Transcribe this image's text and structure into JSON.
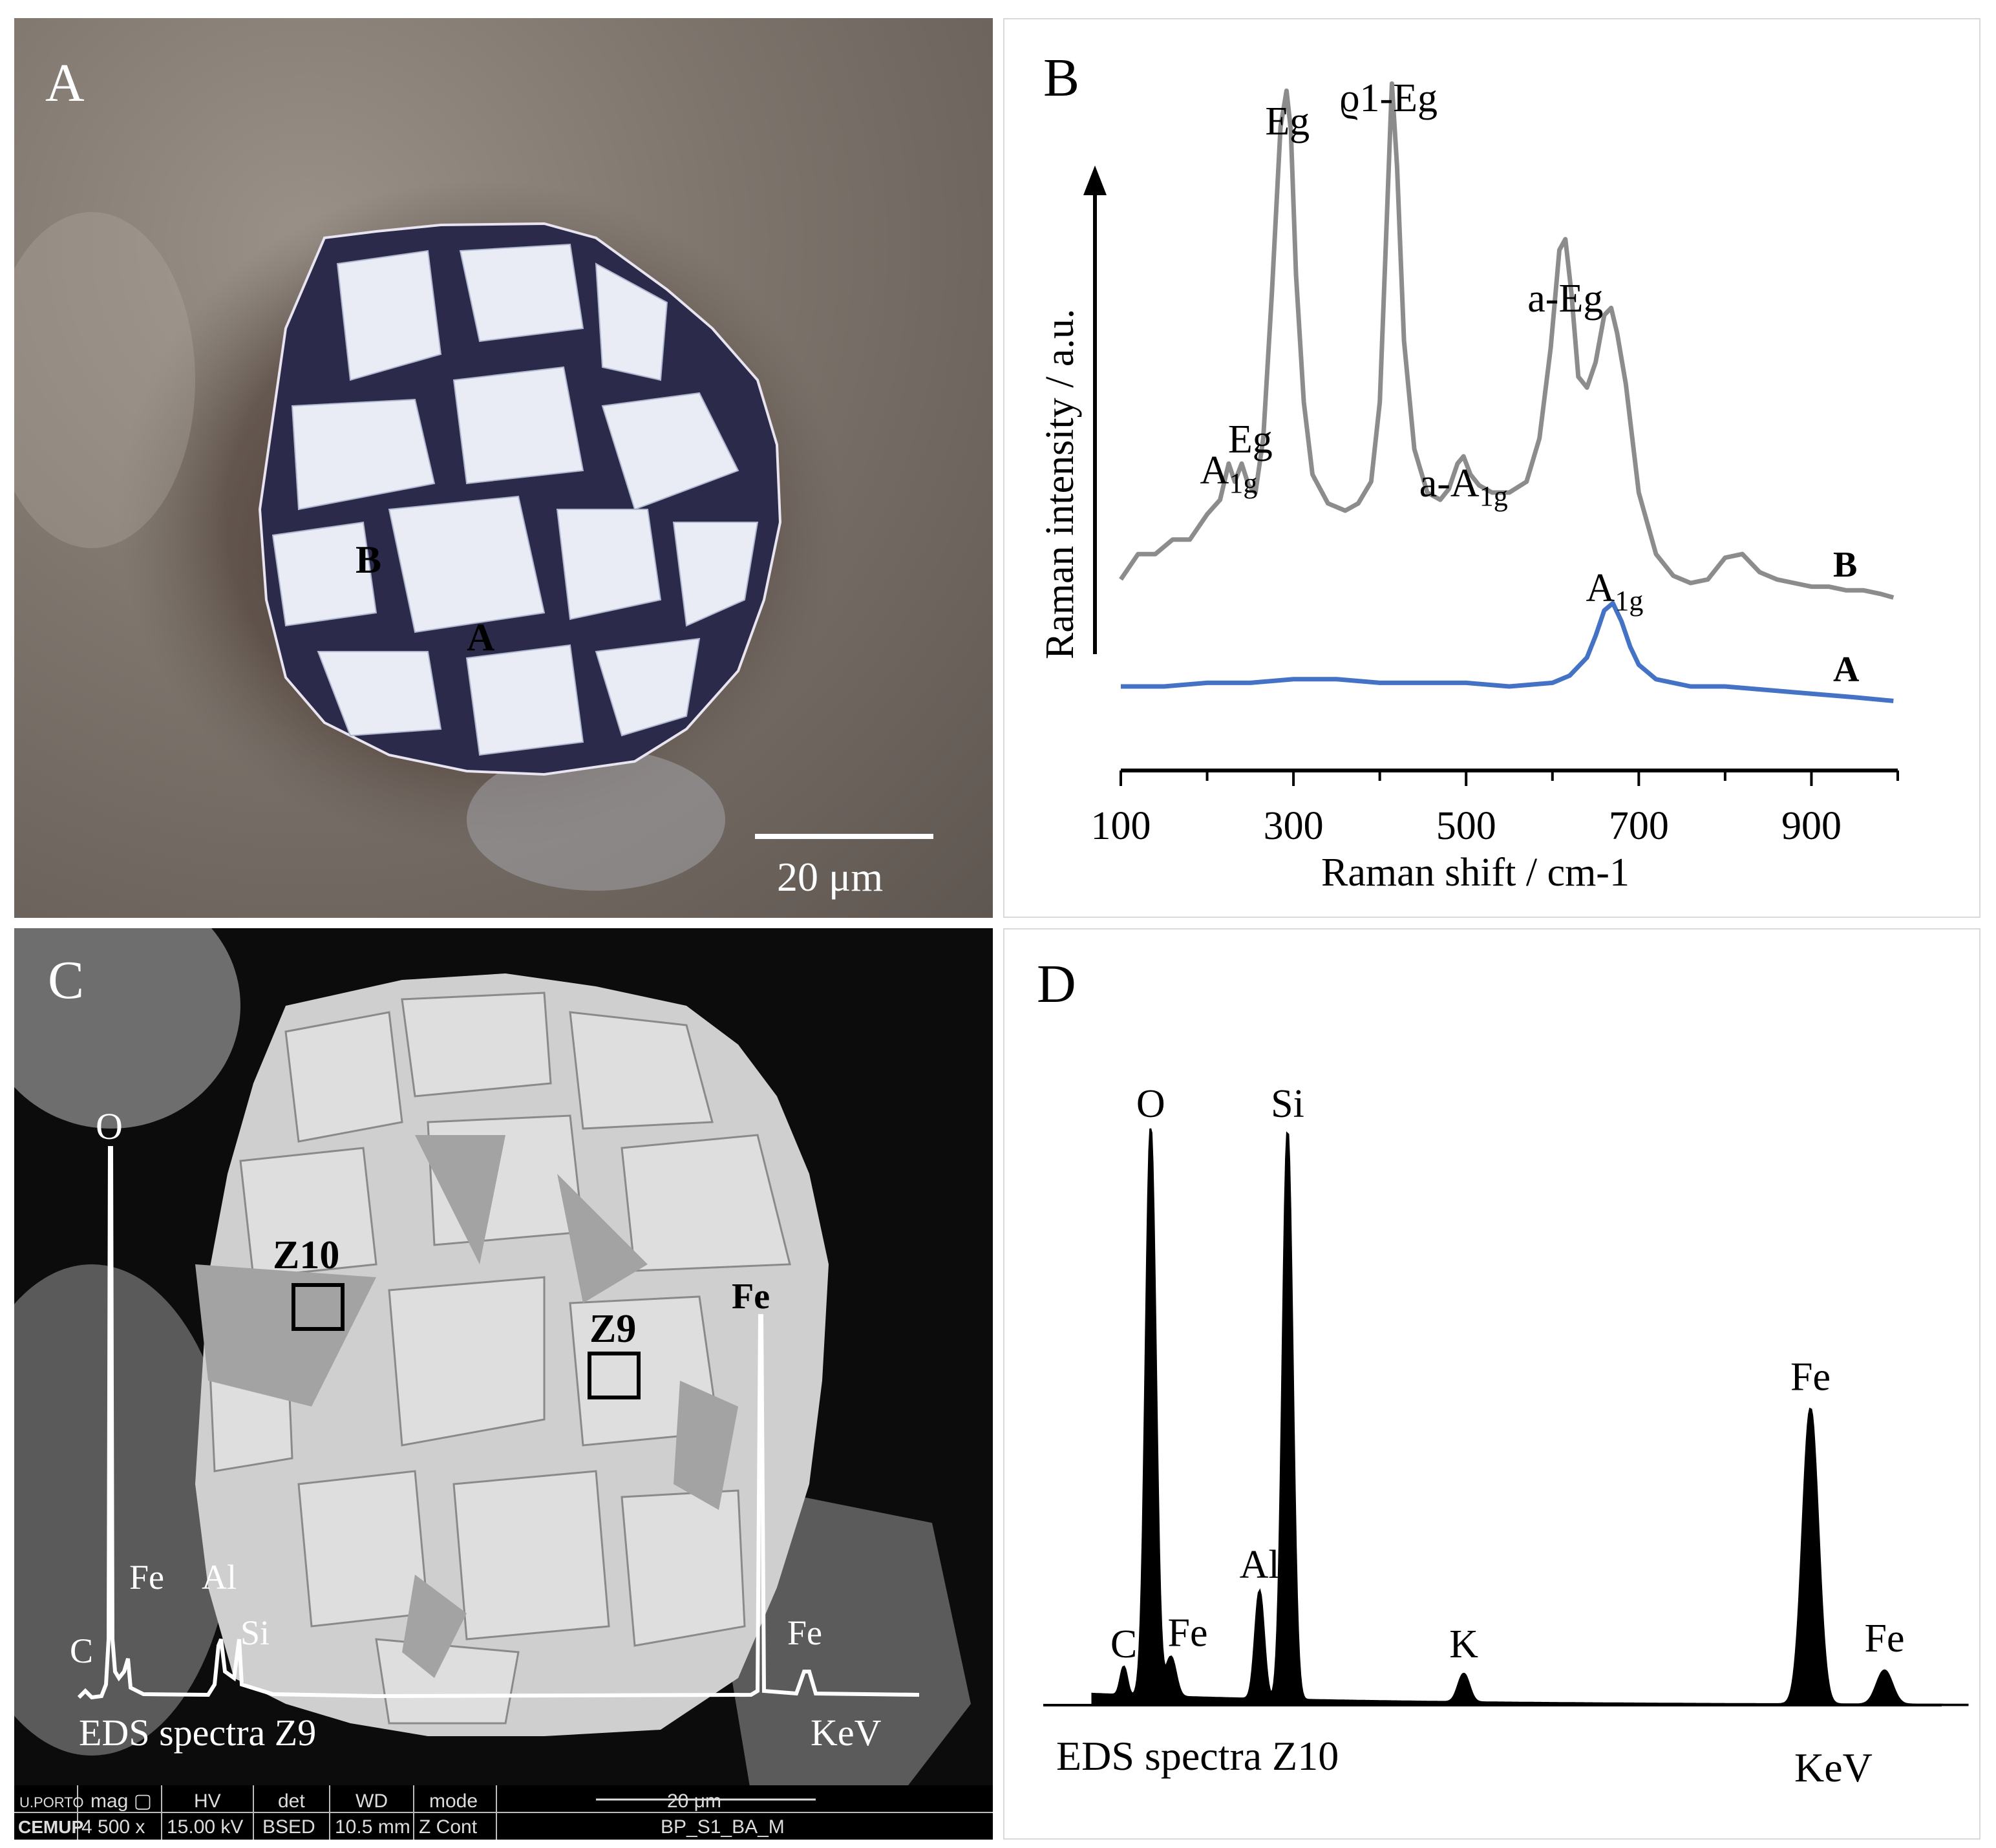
{
  "panel_a": {
    "label": "A",
    "point_b": "B",
    "point_a": "A",
    "scale_bar": "20 μm"
  },
  "panel_b": {
    "label": "B",
    "chart_data": {
      "type": "line",
      "xlabel": "Raman shift / cm-1",
      "ylabel": "Raman intensity / a.u.",
      "xlim": [
        100,
        1000
      ],
      "xticks": [
        100,
        300,
        500,
        700,
        900
      ],
      "series": [
        {
          "name": "B",
          "color": "#8c8c8c",
          "x": [
            100,
            120,
            140,
            160,
            180,
            200,
            215,
            225,
            232,
            240,
            248,
            256,
            265,
            275,
            285,
            292,
            297,
            303,
            312,
            322,
            340,
            360,
            375,
            390,
            400,
            408,
            414,
            420,
            428,
            440,
            455,
            470,
            480,
            490,
            497,
            505,
            515,
            530,
            550,
            570,
            585,
            598,
            608,
            615,
            622,
            630,
            640,
            650,
            660,
            668,
            675,
            685,
            700,
            720,
            740,
            760,
            780,
            800,
            820,
            840,
            860,
            880,
            900,
            920,
            940,
            960,
            980,
            995
          ],
          "y": [
            0.06,
            0.13,
            0.13,
            0.17,
            0.17,
            0.24,
            0.28,
            0.38,
            0.33,
            0.38,
            0.32,
            0.3,
            0.45,
            0.85,
            1.31,
            1.41,
            1.3,
            0.9,
            0.55,
            0.35,
            0.27,
            0.25,
            0.27,
            0.33,
            0.55,
            1.05,
            1.43,
            1.2,
            0.72,
            0.42,
            0.3,
            0.28,
            0.31,
            0.38,
            0.4,
            0.35,
            0.32,
            0.3,
            0.3,
            0.33,
            0.45,
            0.7,
            0.97,
            1.0,
            0.85,
            0.62,
            0.59,
            0.66,
            0.79,
            0.81,
            0.74,
            0.6,
            0.3,
            0.13,
            0.07,
            0.05,
            0.06,
            0.12,
            0.13,
            0.08,
            0.06,
            0.05,
            0.04,
            0.04,
            0.03,
            0.03,
            0.02,
            0.01
          ]
        },
        {
          "name": "A",
          "color": "#4472c4",
          "x": [
            100,
            150,
            200,
            250,
            300,
            350,
            400,
            450,
            500,
            550,
            600,
            620,
            640,
            650,
            660,
            670,
            680,
            690,
            700,
            720,
            740,
            760,
            800,
            850,
            900,
            950,
            995
          ],
          "y": [
            0.0,
            0.0,
            0.01,
            0.01,
            0.02,
            0.02,
            0.01,
            0.01,
            0.01,
            0.0,
            0.01,
            0.03,
            0.08,
            0.14,
            0.21,
            0.23,
            0.18,
            0.11,
            0.06,
            0.02,
            0.01,
            0.0,
            0.0,
            -0.01,
            -0.02,
            -0.03,
            -0.04
          ]
        }
      ],
      "annotations": [
        {
          "text": "Eg",
          "sub": "",
          "x": 293
        },
        {
          "text": "ϱ1-Eg",
          "sub": "",
          "x": 410
        },
        {
          "text": "a-Eg",
          "sub": "",
          "x": 615
        },
        {
          "text": "Eg",
          "sub": "",
          "x": 250
        },
        {
          "text": "A",
          "sub": "1g",
          "x": 225
        },
        {
          "text": "a-A",
          "sub": "1g",
          "x": 497
        },
        {
          "text": "A",
          "sub": "1g",
          "x": 672
        }
      ],
      "series_labels": [
        "B",
        "A"
      ]
    }
  },
  "panel_c": {
    "label": "C",
    "zone_z10": "Z10",
    "zone_z9": "Z9",
    "peaks": [
      "O",
      "Fe",
      "Fe",
      "Fe",
      "Al",
      "Si",
      "C"
    ],
    "spectrum_title": "EDS spectra Z9",
    "kev": "KeV",
    "info_bar": {
      "headers": [
        "mag ▢",
        "HV",
        "det",
        "WD",
        "mode",
        "20 μm"
      ],
      "values": [
        "4 500 x",
        "15.00 kV",
        "BSED",
        "10.5 mm",
        "Z Cont",
        "BP_S1_BA_M"
      ],
      "logo_top": "U.PORTO",
      "logo_bottom": "CEMUP"
    }
  },
  "panel_d": {
    "label": "D",
    "chart_data": {
      "type": "bar",
      "title": "EDS spectra Z10",
      "xlabel": "KeV",
      "peaks": [
        {
          "element": "C",
          "energy": 0.28,
          "height": 0.05
        },
        {
          "element": "O",
          "energy": 0.52,
          "height": 1.0
        },
        {
          "element": "Fe",
          "energy": 0.7,
          "height": 0.07
        },
        {
          "element": "Al",
          "energy": 1.49,
          "height": 0.19
        },
        {
          "element": "Si",
          "energy": 1.74,
          "height": 1.0
        },
        {
          "element": "K",
          "energy": 3.31,
          "height": 0.05
        },
        {
          "element": "Fe",
          "energy": 6.4,
          "height": 0.52
        },
        {
          "element": "Fe",
          "energy": 7.06,
          "height": 0.06
        }
      ]
    }
  }
}
